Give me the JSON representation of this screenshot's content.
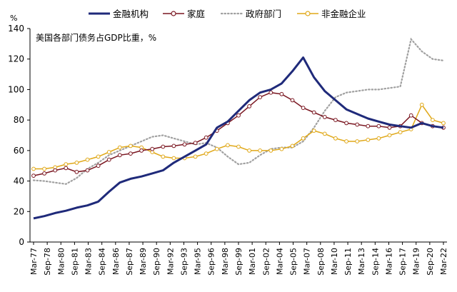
{
  "chart_data": {
    "type": "line",
    "title": "美国各部门债务占GDP比重，%",
    "y_unit_label": "%",
    "ylim": [
      0,
      140
    ],
    "y_ticks": [
      0,
      20,
      40,
      60,
      80,
      100,
      120,
      140
    ],
    "legend_position": "top",
    "grid": false,
    "x_tick_labels": [
      "Mar-77",
      "Sep-78",
      "Mar-80",
      "Sep-81",
      "Mar-83",
      "Sep-84",
      "Mar-86",
      "Sep-87",
      "Mar-89",
      "Sep-90",
      "Mar-92",
      "Sep-93",
      "Mar-95",
      "Sep-96",
      "Mar-98",
      "Sep-99",
      "Mar-01",
      "Sep-02",
      "Mar-04",
      "Sep-05",
      "Mar-07",
      "Sep-08",
      "Mar-10",
      "Sep-11",
      "Mar-13",
      "Sep-14",
      "Mar-16",
      "Sep-17",
      "Mar-19",
      "Sep-20",
      "Mar-22"
    ],
    "series": [
      {
        "name": "金融机构",
        "color": "#1f2a7a",
        "style": "solid",
        "values": [
          15.5,
          17,
          19,
          20.5,
          22.5,
          24,
          26.5,
          33,
          39,
          41.5,
          43,
          45,
          47,
          52,
          56,
          60,
          64,
          75,
          79,
          86,
          93,
          98,
          100,
          104,
          112,
          121,
          108,
          99,
          93,
          87,
          84,
          81,
          79,
          77,
          76,
          75,
          78,
          76,
          75
        ]
      },
      {
        "name": "家庭",
        "color": "#7a1620",
        "style": "circle-markers",
        "values": [
          43.5,
          45,
          47,
          48.5,
          46,
          47,
          50,
          54,
          57,
          58,
          60,
          61,
          62.5,
          63,
          64,
          65,
          68.5,
          73,
          78,
          83,
          89,
          95,
          98,
          97,
          93,
          88,
          85,
          82,
          80,
          78,
          77,
          76,
          76,
          75,
          76,
          83,
          78,
          76,
          75
        ]
      },
      {
        "name": "政府部门",
        "color": "#a0a0a0",
        "style": "dotted",
        "values": [
          40.5,
          40,
          39,
          38,
          42,
          48,
          52,
          57,
          60,
          63,
          66,
          69,
          70,
          68,
          66,
          64,
          65,
          62,
          56,
          51,
          52,
          57,
          61,
          62,
          62,
          66,
          75,
          86,
          95,
          98,
          99,
          100,
          100,
          101,
          102,
          133,
          125,
          120,
          119
        ]
      },
      {
        "name": "非金融企业",
        "color": "#e0a818",
        "style": "circle-markers",
        "values": [
          48,
          48,
          49,
          51,
          52,
          54,
          56,
          59,
          62,
          63,
          62,
          59,
          56,
          55,
          55,
          56,
          58,
          61,
          63.5,
          62.5,
          60,
          60,
          60,
          61,
          63,
          68,
          73,
          71,
          68,
          66,
          66,
          67,
          68,
          70,
          72,
          74,
          90,
          80,
          78
        ]
      }
    ]
  }
}
